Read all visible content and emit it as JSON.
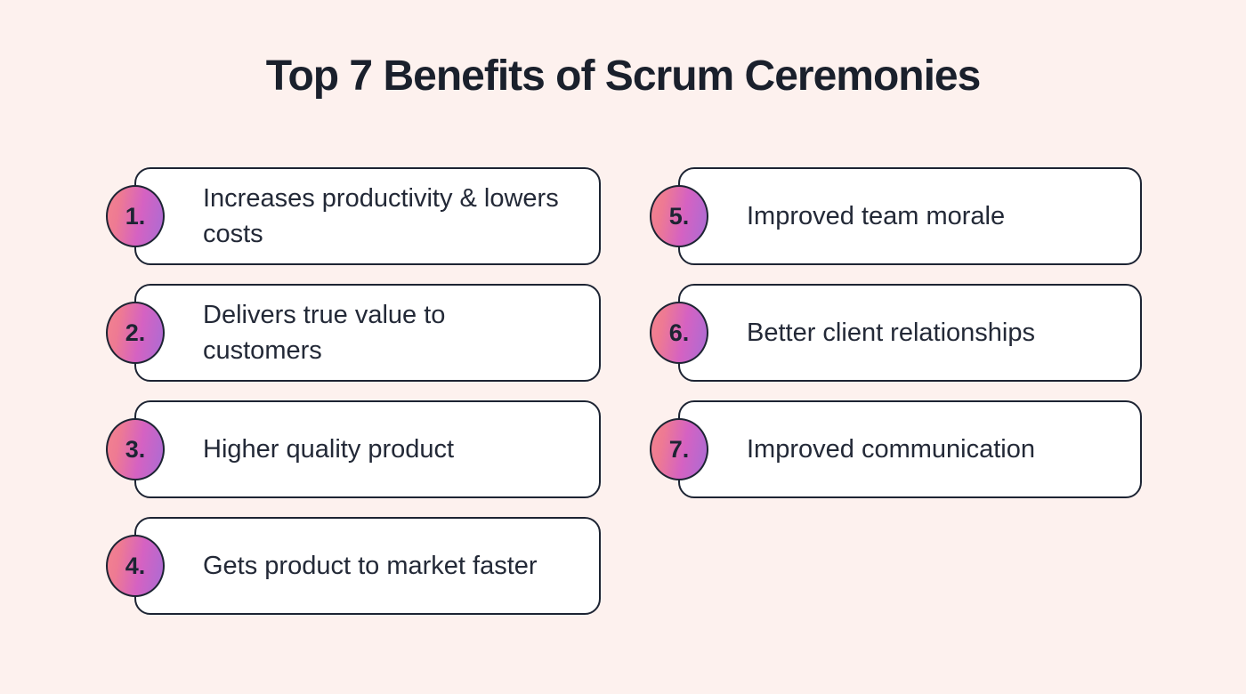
{
  "title": "Top 7 Benefits of Scrum Ceremonies",
  "theme": {
    "background_color": "#fdf1ee",
    "card_background": "#ffffff",
    "outline_color": "#1d2433",
    "text_color": "#232937",
    "badge_gradient_start": "#f2838f",
    "badge_gradient_mid": "#d562c2",
    "badge_gradient_end": "#aa6cd4"
  },
  "benefits": [
    {
      "number": "1.",
      "label": "Increases productivity & lowers costs"
    },
    {
      "number": "2.",
      "label": "Delivers true value to customers"
    },
    {
      "number": "3.",
      "label": "Higher quality product"
    },
    {
      "number": "4.",
      "label": "Gets product to market faster"
    },
    {
      "number": "5.",
      "label": "Improved team morale"
    },
    {
      "number": "6.",
      "label": "Better client relationships"
    },
    {
      "number": "7.",
      "label": "Improved communication"
    }
  ]
}
